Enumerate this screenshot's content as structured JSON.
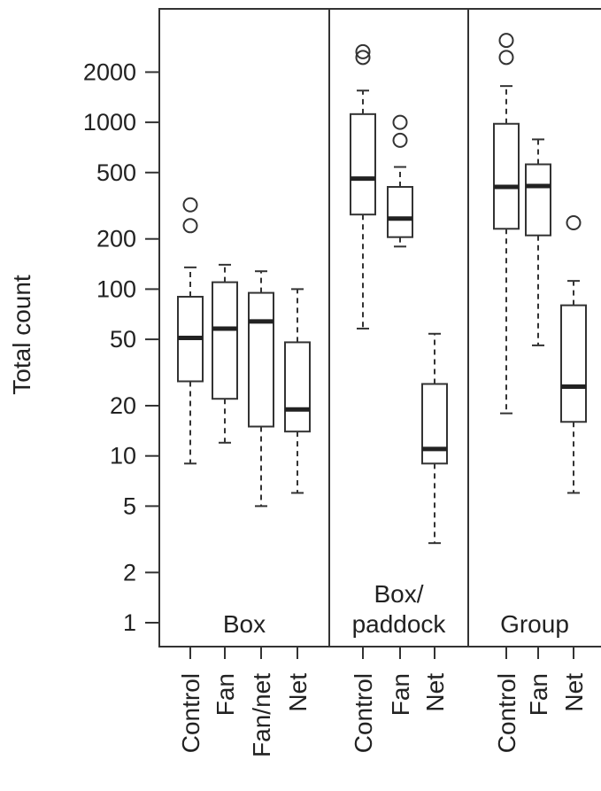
{
  "chart_data": {
    "type": "boxplot",
    "ylabel": "Total count",
    "yscale": "log",
    "ylim": [
      0.7,
      4500
    ],
    "yticks": [
      1,
      2,
      5,
      10,
      20,
      50,
      100,
      200,
      500,
      1000,
      2000
    ],
    "ytick_labels": [
      "1",
      "2",
      "5",
      "10",
      "20",
      "50",
      "100",
      "200",
      "500",
      "1000",
      "2000"
    ],
    "panels": [
      {
        "label": "Box",
        "categories": [
          "Control",
          "Fan",
          "Fan/net",
          "Net"
        ],
        "boxes": [
          {
            "min": 9,
            "q1": 28,
            "median": 51,
            "q3": 90,
            "max": 135,
            "outliers": [
              240,
              320
            ]
          },
          {
            "min": 12,
            "q1": 22,
            "median": 58,
            "q3": 110,
            "max": 140,
            "outliers": []
          },
          {
            "min": 5,
            "q1": 15,
            "median": 64,
            "q3": 95,
            "max": 128,
            "outliers": []
          },
          {
            "min": 6,
            "q1": 14,
            "median": 19,
            "q3": 48,
            "max": 100,
            "outliers": []
          }
        ]
      },
      {
        "label": "Box/\npaddock",
        "categories": [
          "Control",
          "Fan",
          "Net"
        ],
        "boxes": [
          {
            "min": 58,
            "q1": 280,
            "median": 460,
            "q3": 1120,
            "max": 1550,
            "outliers": [
              2450,
              2650
            ]
          },
          {
            "min": 180,
            "q1": 205,
            "median": 265,
            "q3": 410,
            "max": 540,
            "outliers": [
              780,
              1000
            ]
          },
          {
            "min": 3,
            "q1": 9,
            "median": 11,
            "q3": 27,
            "max": 54,
            "outliers": []
          }
        ]
      },
      {
        "label": "Group",
        "categories": [
          "Control",
          "Fan",
          "Net"
        ],
        "boxes": [
          {
            "min": 18,
            "q1": 230,
            "median": 410,
            "q3": 980,
            "max": 1650,
            "outliers": [
              2450,
              3100
            ]
          },
          {
            "min": 46,
            "q1": 210,
            "median": 415,
            "q3": 560,
            "max": 790,
            "outliers": []
          },
          {
            "min": 6,
            "q1": 16,
            "median": 26,
            "q3": 80,
            "max": 112,
            "outliers": [
              250
            ]
          }
        ]
      }
    ]
  }
}
